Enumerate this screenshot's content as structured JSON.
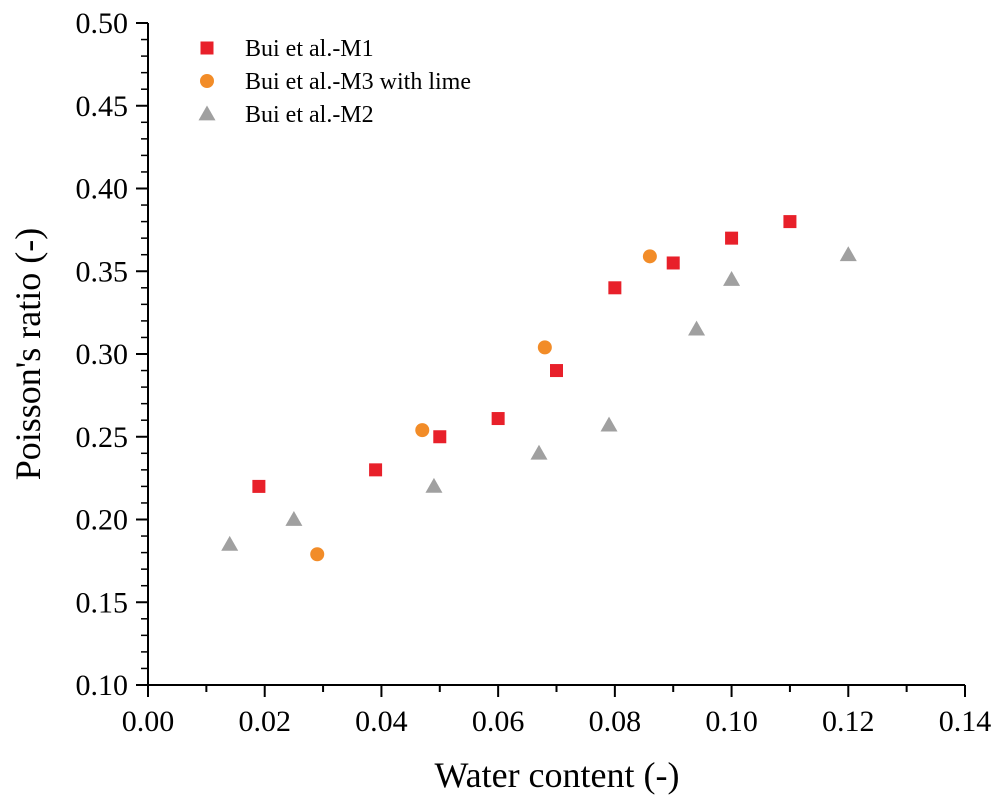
{
  "chart_data": {
    "type": "scatter",
    "xlabel": "Water content (-)",
    "ylabel": "Poisson's ratio (-)",
    "xlim": [
      0.0,
      0.14
    ],
    "ylim": [
      0.1,
      0.5
    ],
    "xticks": [
      "0.00",
      "0.02",
      "0.04",
      "0.06",
      "0.08",
      "0.10",
      "0.12",
      "0.14"
    ],
    "yticks": [
      "0.10",
      "0.15",
      "0.20",
      "0.25",
      "0.30",
      "0.35",
      "0.40",
      "0.45",
      "0.50"
    ],
    "legend_position": "top-left",
    "grid": false,
    "series": [
      {
        "name": "Bui et al.-M1",
        "marker": "square",
        "color": "#e8202a",
        "x": [
          0.019,
          0.039,
          0.05,
          0.06,
          0.07,
          0.08,
          0.09,
          0.1,
          0.11
        ],
        "y": [
          0.22,
          0.23,
          0.25,
          0.261,
          0.29,
          0.34,
          0.355,
          0.37,
          0.38
        ]
      },
      {
        "name": "Bui et al.-M3 with lime",
        "marker": "circle",
        "color": "#f28c28",
        "x": [
          0.029,
          0.047,
          0.068,
          0.086
        ],
        "y": [
          0.179,
          0.254,
          0.304,
          0.359
        ]
      },
      {
        "name": "Bui et al.-M2",
        "marker": "triangle",
        "color": "#a0a0a0",
        "x": [
          0.014,
          0.025,
          0.049,
          0.067,
          0.079,
          0.094,
          0.1,
          0.12
        ],
        "y": [
          0.185,
          0.2,
          0.22,
          0.24,
          0.257,
          0.315,
          0.345,
          0.36
        ]
      }
    ]
  }
}
